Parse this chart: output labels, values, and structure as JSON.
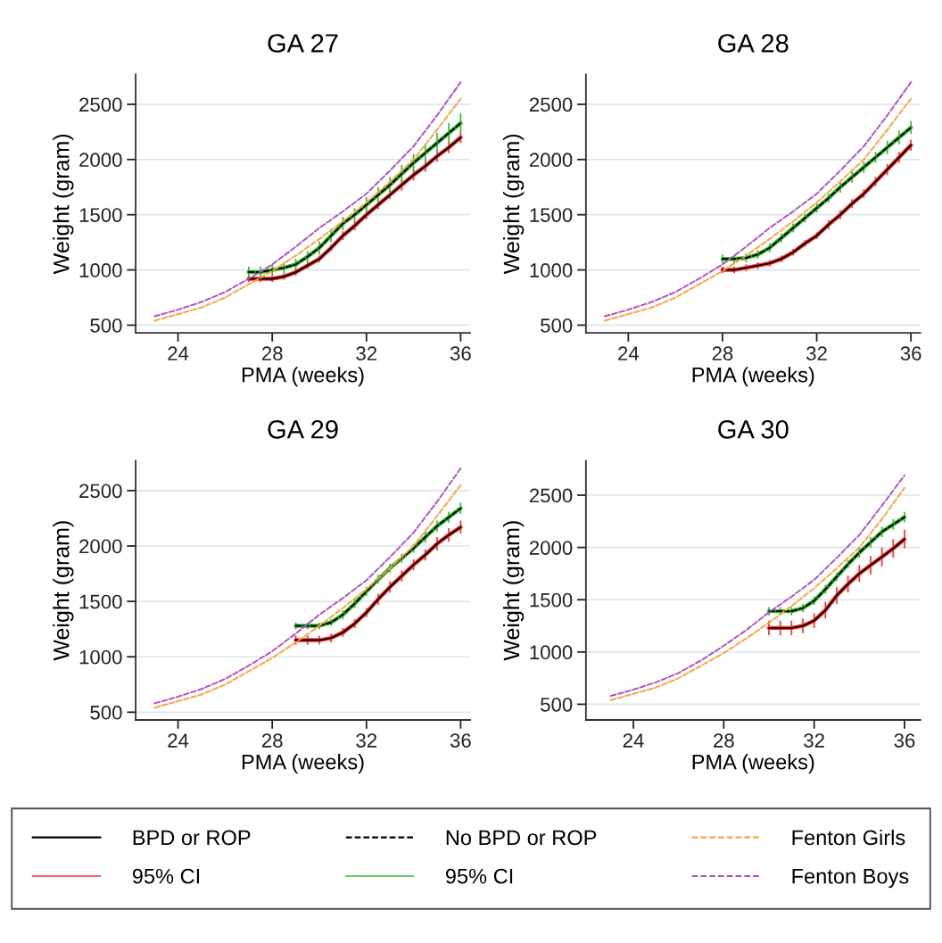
{
  "chart_data": [
    {
      "type": "line",
      "title": "GA 27",
      "xlabel": "PMA (weeks)",
      "ylabel": "Weight (gram)",
      "xlim": [
        22.2,
        36.4
      ],
      "ylim": [
        430,
        2770
      ],
      "xticks": [
        24,
        28,
        32,
        36
      ],
      "yticks": [
        500,
        1000,
        1500,
        2000,
        2500
      ],
      "grid": "y",
      "legend": "bottom",
      "marker": "none",
      "series": [
        {
          "name": "BPD or ROP",
          "color": "#000000",
          "line_style": "solid",
          "x": [
            27,
            27.5,
            28,
            28.5,
            29,
            29.5,
            30,
            30.5,
            31,
            31.5,
            32,
            32.5,
            33,
            33.5,
            34,
            34.5,
            35,
            35.5,
            36
          ],
          "values": [
            920,
            920,
            920,
            940,
            980,
            1040,
            1100,
            1200,
            1310,
            1400,
            1500,
            1590,
            1680,
            1770,
            1860,
            1940,
            2030,
            2110,
            2200
          ]
        },
        {
          "name": "95% CI",
          "color": "#ff2a2a",
          "x": [
            27,
            27.5,
            28,
            28.5,
            29,
            29.5,
            30,
            30.5,
            31,
            31.5,
            32,
            32.5,
            33,
            33.5,
            34,
            34.5,
            35,
            35.5,
            36
          ],
          "values": [
            920,
            920,
            920,
            940,
            980,
            1040,
            1100,
            1200,
            1310,
            1400,
            1500,
            1590,
            1680,
            1770,
            1860,
            1940,
            2030,
            2110,
            2200
          ],
          "errors": [
            30,
            30,
            30,
            30,
            30,
            30,
            30,
            30,
            40,
            40,
            40,
            40,
            40,
            50,
            50,
            50,
            50,
            50,
            50
          ]
        },
        {
          "name": "No BPD or ROP",
          "color": "#000000",
          "line_style": "dashed",
          "x": [
            27,
            27.5,
            28,
            28.5,
            29,
            29.5,
            30,
            30.5,
            31,
            31.5,
            32,
            32.5,
            33,
            33.5,
            34,
            34.5,
            35,
            35.5,
            36
          ],
          "values": [
            980,
            980,
            1000,
            1020,
            1050,
            1120,
            1200,
            1310,
            1420,
            1500,
            1590,
            1680,
            1770,
            1870,
            1970,
            2060,
            2150,
            2240,
            2330
          ]
        },
        {
          "name": "95% CI",
          "color": "#33b833",
          "x": [
            27,
            27.5,
            28,
            28.5,
            29,
            29.5,
            30,
            30.5,
            31,
            31.5,
            32,
            32.5,
            33,
            33.5,
            34,
            34.5,
            35,
            35.5,
            36
          ],
          "values": [
            980,
            980,
            1000,
            1020,
            1050,
            1120,
            1200,
            1310,
            1420,
            1500,
            1590,
            1680,
            1770,
            1870,
            1970,
            2060,
            2150,
            2240,
            2330
          ],
          "errors": [
            50,
            50,
            50,
            50,
            50,
            50,
            60,
            60,
            60,
            60,
            70,
            70,
            70,
            80,
            80,
            80,
            90,
            90,
            90
          ]
        },
        {
          "name": "Fenton Girls",
          "color": "#ffa040",
          "line_style": "dashed",
          "x": [
            23,
            24,
            25,
            26,
            27,
            28,
            29,
            30,
            31,
            32,
            33,
            34,
            35,
            36
          ],
          "values": [
            540,
            600,
            660,
            750,
            870,
            990,
            1130,
            1280,
            1440,
            1610,
            1800,
            2000,
            2270,
            2550
          ]
        },
        {
          "name": "Fenton Boys",
          "color": "#b050c0",
          "line_style": "dashed",
          "x": [
            23,
            24,
            25,
            26,
            27,
            28,
            29,
            30,
            31,
            32,
            33,
            34,
            35,
            36
          ],
          "values": [
            580,
            640,
            710,
            800,
            920,
            1050,
            1210,
            1380,
            1530,
            1690,
            1900,
            2120,
            2400,
            2700
          ]
        }
      ]
    },
    {
      "type": "line",
      "title": "GA 28",
      "xlabel": "PMA (weeks)",
      "ylabel": "Weight (gram)",
      "xlim": [
        22.2,
        36.4
      ],
      "ylim": [
        430,
        2770
      ],
      "xticks": [
        24,
        28,
        32,
        36
      ],
      "yticks": [
        500,
        1000,
        1500,
        2000,
        2500
      ],
      "grid": "y",
      "marker": "none",
      "series": [
        {
          "color": "#000000",
          "line_style": "solid",
          "x": [
            28,
            28.5,
            29,
            29.5,
            30,
            30.5,
            31,
            31.5,
            32,
            32.5,
            33,
            33.5,
            34,
            34.5,
            35,
            35.5,
            36
          ],
          "values": [
            1000,
            1000,
            1020,
            1040,
            1060,
            1100,
            1160,
            1240,
            1310,
            1410,
            1500,
            1600,
            1690,
            1800,
            1910,
            2020,
            2130
          ]
        },
        {
          "color": "#ff2a2a",
          "x": [
            28,
            28.5,
            29,
            29.5,
            30,
            30.5,
            31,
            31.5,
            32,
            32.5,
            33,
            33.5,
            34,
            34.5,
            35,
            35.5,
            36
          ],
          "values": [
            1000,
            1000,
            1020,
            1040,
            1060,
            1100,
            1160,
            1240,
            1310,
            1410,
            1500,
            1600,
            1690,
            1800,
            1910,
            2020,
            2130
          ],
          "errors": [
            30,
            30,
            30,
            30,
            30,
            30,
            30,
            30,
            30,
            40,
            40,
            40,
            40,
            40,
            50,
            50,
            50
          ]
        },
        {
          "color": "#000000",
          "line_style": "dashed",
          "x": [
            28,
            28.5,
            29,
            29.5,
            30,
            30.5,
            31,
            31.5,
            32,
            32.5,
            33,
            33.5,
            34,
            34.5,
            35,
            35.5,
            36
          ],
          "values": [
            1100,
            1100,
            1110,
            1140,
            1200,
            1290,
            1380,
            1470,
            1560,
            1650,
            1750,
            1840,
            1930,
            2020,
            2110,
            2200,
            2290
          ]
        },
        {
          "color": "#33b833",
          "x": [
            28,
            28.5,
            29,
            29.5,
            30,
            30.5,
            31,
            31.5,
            32,
            32.5,
            33,
            33.5,
            34,
            34.5,
            35,
            35.5,
            36
          ],
          "values": [
            1100,
            1100,
            1110,
            1140,
            1200,
            1290,
            1380,
            1470,
            1560,
            1650,
            1750,
            1840,
            1930,
            2020,
            2110,
            2200,
            2290
          ],
          "errors": [
            40,
            40,
            40,
            40,
            40,
            40,
            40,
            40,
            40,
            40,
            50,
            50,
            50,
            50,
            60,
            60,
            60
          ]
        },
        {
          "color": "#ffa040",
          "line_style": "dashed",
          "x": [
            23,
            24,
            25,
            26,
            27,
            28,
            29,
            30,
            31,
            32,
            33,
            34,
            35,
            36
          ],
          "values": [
            540,
            600,
            660,
            750,
            870,
            990,
            1130,
            1280,
            1440,
            1610,
            1800,
            2000,
            2270,
            2550
          ]
        },
        {
          "color": "#b050c0",
          "line_style": "dashed",
          "x": [
            23,
            24,
            25,
            26,
            27,
            28,
            29,
            30,
            31,
            32,
            33,
            34,
            35,
            36
          ],
          "values": [
            580,
            640,
            710,
            800,
            920,
            1050,
            1210,
            1380,
            1530,
            1690,
            1900,
            2120,
            2400,
            2700
          ]
        }
      ]
    },
    {
      "type": "line",
      "title": "GA 29",
      "xlabel": "PMA (weeks)",
      "ylabel": "Weight (gram)",
      "xlim": [
        22.2,
        36.4
      ],
      "ylim": [
        430,
        2770
      ],
      "xticks": [
        24,
        28,
        32,
        36
      ],
      "yticks": [
        500,
        1000,
        1500,
        2000,
        2500
      ],
      "grid": "y",
      "marker": "none",
      "series": [
        {
          "color": "#000000",
          "line_style": "solid",
          "x": [
            29,
            29.5,
            30,
            30.5,
            31,
            31.5,
            32,
            32.5,
            33,
            33.5,
            34,
            34.5,
            35,
            35.5,
            36
          ],
          "values": [
            1150,
            1150,
            1150,
            1170,
            1220,
            1300,
            1400,
            1520,
            1630,
            1730,
            1830,
            1920,
            2020,
            2100,
            2170
          ]
        },
        {
          "color": "#ff2a2a",
          "x": [
            29,
            29.5,
            30,
            30.5,
            31,
            31.5,
            32,
            32.5,
            33,
            33.5,
            34,
            34.5,
            35,
            35.5,
            36
          ],
          "values": [
            1150,
            1150,
            1150,
            1170,
            1220,
            1300,
            1400,
            1520,
            1630,
            1730,
            1830,
            1920,
            2020,
            2100,
            2170
          ],
          "errors": [
            40,
            40,
            40,
            40,
            40,
            40,
            40,
            50,
            50,
            50,
            50,
            50,
            60,
            60,
            60
          ]
        },
        {
          "color": "#000000",
          "line_style": "dashed",
          "x": [
            29,
            29.5,
            30,
            30.5,
            31,
            31.5,
            32,
            32.5,
            33,
            33.5,
            34,
            34.5,
            35,
            35.5,
            36
          ],
          "values": [
            1280,
            1280,
            1280,
            1310,
            1380,
            1480,
            1590,
            1700,
            1800,
            1890,
            1980,
            2080,
            2180,
            2260,
            2340
          ]
        },
        {
          "color": "#33b833",
          "x": [
            29,
            29.5,
            30,
            30.5,
            31,
            31.5,
            32,
            32.5,
            33,
            33.5,
            34,
            34.5,
            35,
            35.5,
            36
          ],
          "values": [
            1280,
            1280,
            1280,
            1310,
            1380,
            1480,
            1590,
            1700,
            1800,
            1890,
            1980,
            2080,
            2180,
            2260,
            2340
          ],
          "errors": [
            30,
            30,
            30,
            30,
            40,
            40,
            40,
            40,
            40,
            40,
            40,
            50,
            50,
            50,
            50
          ]
        },
        {
          "color": "#ffa040",
          "line_style": "dashed",
          "x": [
            23,
            24,
            25,
            26,
            27,
            28,
            29,
            30,
            31,
            32,
            33,
            34,
            35,
            36
          ],
          "values": [
            540,
            600,
            660,
            750,
            870,
            990,
            1130,
            1280,
            1440,
            1610,
            1800,
            2000,
            2270,
            2550
          ]
        },
        {
          "color": "#b050c0",
          "line_style": "dashed",
          "x": [
            23,
            24,
            25,
            26,
            27,
            28,
            29,
            30,
            31,
            32,
            33,
            34,
            35,
            36
          ],
          "values": [
            580,
            640,
            710,
            800,
            920,
            1050,
            1210,
            1380,
            1530,
            1690,
            1900,
            2120,
            2400,
            2700
          ]
        }
      ]
    },
    {
      "type": "line",
      "title": "GA 30",
      "xlabel": "PMA (weeks)",
      "ylabel": "Weight (gram)",
      "xlim": [
        21.9,
        36.7
      ],
      "ylim": [
        350,
        2830
      ],
      "xticks": [
        24,
        28,
        32,
        36
      ],
      "yticks": [
        500,
        1000,
        1500,
        2000,
        2500
      ],
      "grid": "y",
      "marker": "none",
      "series": [
        {
          "color": "#000000",
          "line_style": "solid",
          "x": [
            30,
            30.5,
            31,
            31.5,
            32,
            32.5,
            33,
            33.5,
            34,
            34.5,
            35,
            35.5,
            36
          ],
          "values": [
            1230,
            1230,
            1230,
            1250,
            1300,
            1400,
            1540,
            1650,
            1750,
            1830,
            1910,
            1990,
            2080
          ]
        },
        {
          "color": "#ff2a2a",
          "x": [
            30,
            30.5,
            31,
            31.5,
            32,
            32.5,
            33,
            33.5,
            34,
            34.5,
            35,
            35.5,
            36
          ],
          "values": [
            1230,
            1230,
            1230,
            1250,
            1300,
            1400,
            1540,
            1650,
            1750,
            1830,
            1910,
            1990,
            2080
          ],
          "errors": [
            70,
            70,
            70,
            70,
            70,
            80,
            80,
            80,
            80,
            90,
            90,
            90,
            90
          ]
        },
        {
          "color": "#000000",
          "line_style": "dashed",
          "x": [
            30,
            30.5,
            31,
            31.5,
            32,
            32.5,
            33,
            33.5,
            34,
            34.5,
            35,
            35.5,
            36
          ],
          "values": [
            1390,
            1390,
            1390,
            1420,
            1490,
            1600,
            1720,
            1840,
            1950,
            2050,
            2150,
            2220,
            2290
          ]
        },
        {
          "color": "#33b833",
          "x": [
            30,
            30.5,
            31,
            31.5,
            32,
            32.5,
            33,
            33.5,
            34,
            34.5,
            35,
            35.5,
            36
          ],
          "values": [
            1390,
            1390,
            1390,
            1420,
            1490,
            1600,
            1720,
            1840,
            1950,
            2050,
            2150,
            2220,
            2290
          ],
          "errors": [
            40,
            40,
            40,
            40,
            40,
            40,
            40,
            40,
            50,
            50,
            50,
            50,
            50
          ]
        },
        {
          "color": "#ffa040",
          "line_style": "dashed",
          "x": [
            23,
            24,
            25,
            26,
            27,
            28,
            29,
            30,
            31,
            32,
            33,
            34,
            35,
            36
          ],
          "values": [
            540,
            600,
            660,
            750,
            870,
            990,
            1130,
            1280,
            1440,
            1610,
            1800,
            2000,
            2270,
            2570
          ]
        },
        {
          "color": "#b050c0",
          "line_style": "dashed",
          "x": [
            23,
            24,
            25,
            26,
            27,
            28,
            29,
            30,
            31,
            32,
            33,
            34,
            35,
            36
          ],
          "values": [
            580,
            640,
            710,
            800,
            920,
            1060,
            1210,
            1380,
            1530,
            1690,
            1900,
            2120,
            2400,
            2690
          ]
        }
      ]
    }
  ]
}
